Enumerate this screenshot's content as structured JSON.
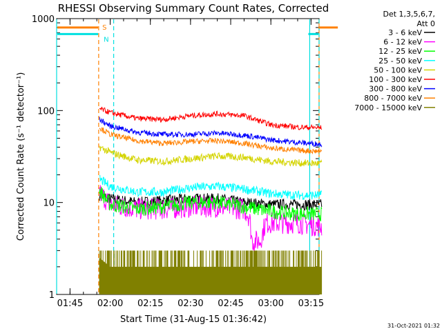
{
  "chart_data": {
    "type": "line",
    "title": "RHESSI Observing Summary Count Rates, Corrected",
    "xlabel": "Start Time (31-Aug-15 01:36:42)",
    "ylabel": "Corrected Count Rate (s⁻¹ detector⁻¹)",
    "yscale": "log",
    "ylim": [
      1,
      1000
    ],
    "xlim_minutes_after_0140": [
      0,
      98
    ],
    "x_ticks": [
      "01:45",
      "02:00",
      "02:15",
      "02:30",
      "02:45",
      "03:00",
      "03:15"
    ],
    "y_ticks": [
      "1",
      "10",
      "100",
      "1000"
    ],
    "legend_header": [
      "Det 1,3,5,6,7,",
      "Att 0"
    ],
    "footer": "31-Oct-2021 01:32",
    "flags": [
      {
        "label": "S",
        "color": "#ff8000",
        "y": 800,
        "segments": [
          [
            0,
            15.5
          ],
          [
            105,
            115
          ]
        ]
      },
      {
        "label": "N",
        "color": "#00e0e0",
        "y": 680,
        "segments": [
          [
            0,
            15.5
          ],
          [
            94,
            112
          ]
        ]
      }
    ],
    "vlines": [
      {
        "name": "dash-orange-1",
        "color": "#ff8000",
        "style": "dashed",
        "x": 15.7
      },
      {
        "name": "dash-cyan-1",
        "color": "#00e0e0",
        "style": "dashed",
        "x": 21.3
      },
      {
        "name": "solid-cyan-1",
        "color": "#00e0e0",
        "style": "solid",
        "x": -1.2
      },
      {
        "name": "solid-cyan-2",
        "color": "#00e0e0",
        "style": "solid",
        "x": 94.5
      },
      {
        "name": "solid-orange-1",
        "color": "#ff8000",
        "style": "solid",
        "x": 105.0
      },
      {
        "name": "dash-cyan-2",
        "color": "#00e0e0",
        "style": "dashed",
        "x": 115.5
      }
    ],
    "series": [
      {
        "name": "3 - 6 keV",
        "color": "#000000",
        "noise": 0.06,
        "points": [
          [
            16,
            12
          ],
          [
            20,
            11
          ],
          [
            30,
            10
          ],
          [
            40,
            10.5
          ],
          [
            50,
            11
          ],
          [
            60,
            11
          ],
          [
            70,
            10
          ],
          [
            80,
            9.5
          ],
          [
            90,
            9.5
          ],
          [
            99,
            9.5
          ]
        ]
      },
      {
        "name": "6 - 12 keV",
        "color": "#ff00ff",
        "noise": 0.12,
        "points": [
          [
            16,
            13
          ],
          [
            20,
            9.5
          ],
          [
            30,
            8.5
          ],
          [
            40,
            8.5
          ],
          [
            50,
            9
          ],
          [
            60,
            9
          ],
          [
            70,
            8.5
          ],
          [
            72,
            7
          ],
          [
            73,
            3.8
          ],
          [
            76,
            3.8
          ],
          [
            78,
            6
          ],
          [
            90,
            6
          ],
          [
            99,
            5.5
          ]
        ]
      },
      {
        "name": "12 - 25 keV",
        "color": "#00ff00",
        "noise": 0.08,
        "points": [
          [
            16,
            13.5
          ],
          [
            20,
            9.5
          ],
          [
            30,
            8.5
          ],
          [
            40,
            9
          ],
          [
            50,
            10
          ],
          [
            60,
            10
          ],
          [
            70,
            9
          ],
          [
            80,
            8
          ],
          [
            90,
            7.5
          ],
          [
            99,
            7.5
          ]
        ]
      },
      {
        "name": "25 - 50 keV",
        "color": "#00ffff",
        "noise": 0.05,
        "points": [
          [
            16,
            18
          ],
          [
            20,
            15
          ],
          [
            30,
            13
          ],
          [
            40,
            13
          ],
          [
            50,
            14.5
          ],
          [
            60,
            15
          ],
          [
            70,
            14
          ],
          [
            80,
            12.5
          ],
          [
            90,
            12
          ],
          [
            99,
            12
          ]
        ]
      },
      {
        "name": "50 - 100 keV",
        "color": "#d4d400",
        "noise": 0.04,
        "points": [
          [
            16,
            40
          ],
          [
            20,
            35
          ],
          [
            30,
            29
          ],
          [
            40,
            28
          ],
          [
            50,
            30
          ],
          [
            60,
            32
          ],
          [
            70,
            31
          ],
          [
            80,
            28
          ],
          [
            90,
            27
          ],
          [
            99,
            26.5
          ]
        ]
      },
      {
        "name": "100 - 300 keV",
        "color": "#ff0000",
        "noise": 0.03,
        "points": [
          [
            16,
            105
          ],
          [
            20,
            95
          ],
          [
            30,
            82
          ],
          [
            40,
            80
          ],
          [
            50,
            88
          ],
          [
            60,
            92
          ],
          [
            70,
            88
          ],
          [
            80,
            70
          ],
          [
            90,
            66
          ],
          [
            99,
            65
          ]
        ]
      },
      {
        "name": "300 - 800 keV",
        "color": "#0000ff",
        "noise": 0.03,
        "points": [
          [
            16,
            80
          ],
          [
            20,
            68
          ],
          [
            30,
            58
          ],
          [
            40,
            55
          ],
          [
            50,
            55
          ],
          [
            60,
            57
          ],
          [
            70,
            54
          ],
          [
            80,
            48
          ],
          [
            90,
            45
          ],
          [
            99,
            43
          ]
        ]
      },
      {
        "name": "800 - 7000 keV",
        "color": "#ff8000",
        "noise": 0.03,
        "points": [
          [
            16,
            65
          ],
          [
            20,
            55
          ],
          [
            30,
            47
          ],
          [
            40,
            44
          ],
          [
            50,
            46
          ],
          [
            60,
            47
          ],
          [
            70,
            44
          ],
          [
            80,
            39
          ],
          [
            90,
            37
          ],
          [
            99,
            36
          ]
        ]
      },
      {
        "name": "7000 - 15000 keV",
        "color": "#808000",
        "noise": 0,
        "points": [
          [
            16,
            2.5
          ],
          [
            20,
            2
          ],
          [
            99,
            2
          ]
        ]
      }
    ]
  }
}
